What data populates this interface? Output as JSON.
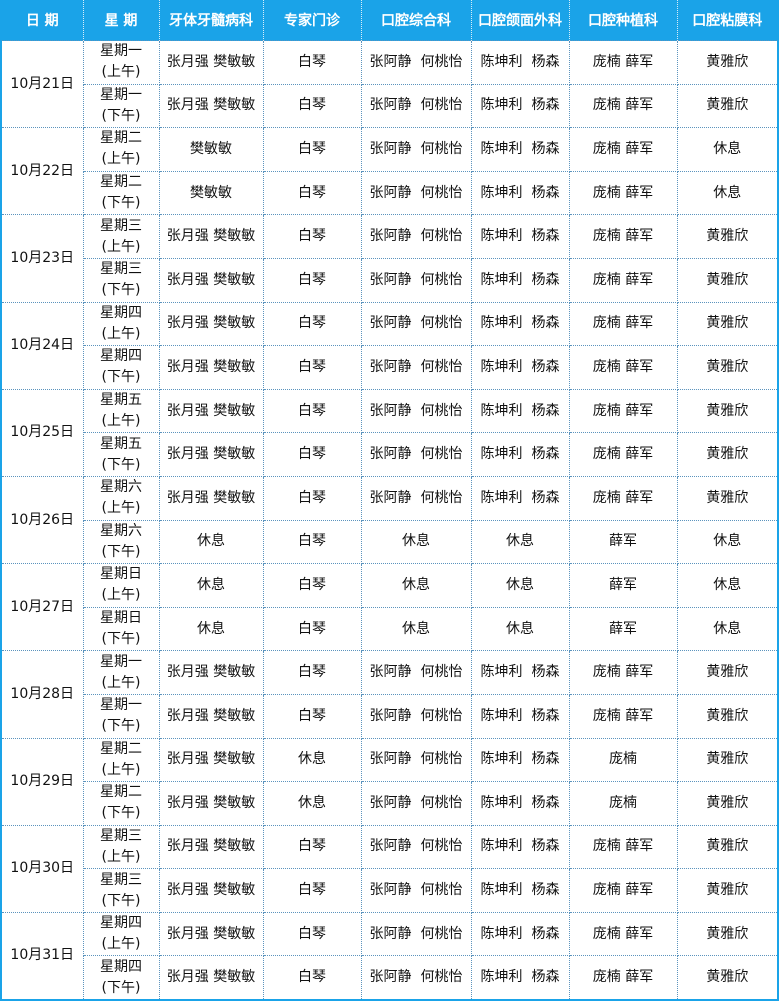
{
  "headers": [
    "日 期",
    "星 期",
    "牙体牙髓病科",
    "专家门诊",
    "口腔综合科",
    "口腔颌面外科",
    "口腔种植科",
    "口腔粘膜科"
  ],
  "days": [
    {
      "date": "10月21日",
      "weekday": "星期一",
      "sessions": [
        {
          "label": "(上午)",
          "cells": [
            "张月强 樊敏敏",
            "白琴",
            "张阿静  何桃怡",
            "陈坤利  杨森",
            "庞楠 薛军",
            "黄雅欣"
          ]
        },
        {
          "label": "(下午)",
          "cells": [
            "张月强 樊敏敏",
            "白琴",
            "张阿静  何桃怡",
            "陈坤利  杨森",
            "庞楠 薛军",
            "黄雅欣"
          ]
        }
      ]
    },
    {
      "date": "10月22日",
      "weekday": "星期二",
      "sessions": [
        {
          "label": "(上午)",
          "cells": [
            "樊敏敏",
            "白琴",
            "张阿静  何桃怡",
            "陈坤利  杨森",
            "庞楠 薛军",
            "休息"
          ]
        },
        {
          "label": "(下午)",
          "cells": [
            "樊敏敏",
            "白琴",
            "张阿静  何桃怡",
            "陈坤利  杨森",
            "庞楠 薛军",
            "休息"
          ]
        }
      ]
    },
    {
      "date": "10月23日",
      "weekday": "星期三",
      "sessions": [
        {
          "label": "(上午)",
          "cells": [
            "张月强 樊敏敏",
            "白琴",
            "张阿静  何桃怡",
            "陈坤利  杨森",
            "庞楠 薛军",
            "黄雅欣"
          ]
        },
        {
          "label": "(下午)",
          "cells": [
            "张月强 樊敏敏",
            "白琴",
            "张阿静  何桃怡",
            "陈坤利  杨森",
            "庞楠 薛军",
            "黄雅欣"
          ]
        }
      ]
    },
    {
      "date": "10月24日",
      "weekday": "星期四",
      "sessions": [
        {
          "label": "(上午)",
          "cells": [
            "张月强 樊敏敏",
            "白琴",
            "张阿静  何桃怡",
            "陈坤利  杨森",
            "庞楠 薛军",
            "黄雅欣"
          ]
        },
        {
          "label": "(下午)",
          "cells": [
            "张月强 樊敏敏",
            "白琴",
            "张阿静  何桃怡",
            "陈坤利  杨森",
            "庞楠 薛军",
            "黄雅欣"
          ]
        }
      ]
    },
    {
      "date": "10月25日",
      "weekday": "星期五",
      "sessions": [
        {
          "label": "(上午)",
          "cells": [
            "张月强 樊敏敏",
            "白琴",
            "张阿静  何桃怡",
            "陈坤利  杨森",
            "庞楠 薛军",
            "黄雅欣"
          ]
        },
        {
          "label": "(下午)",
          "cells": [
            "张月强 樊敏敏",
            "白琴",
            "张阿静  何桃怡",
            "陈坤利  杨森",
            "庞楠 薛军",
            "黄雅欣"
          ]
        }
      ]
    },
    {
      "date": "10月26日",
      "weekday": "星期六",
      "sessions": [
        {
          "label": "(上午)",
          "cells": [
            "张月强 樊敏敏",
            "白琴",
            "张阿静  何桃怡",
            "陈坤利  杨森",
            "庞楠 薛军",
            "黄雅欣"
          ]
        },
        {
          "label": "(下午)",
          "cells": [
            "休息",
            "白琴",
            "休息",
            "休息",
            "薛军",
            "休息"
          ]
        }
      ]
    },
    {
      "date": "10月27日",
      "weekday": "星期日",
      "sessions": [
        {
          "label": "(上午)",
          "cells": [
            "休息",
            "白琴",
            "休息",
            "休息",
            "薛军",
            "休息"
          ]
        },
        {
          "label": "(下午)",
          "cells": [
            "休息",
            "白琴",
            "休息",
            "休息",
            "薛军",
            "休息"
          ]
        }
      ]
    },
    {
      "date": "10月28日",
      "weekday": "星期一",
      "sessions": [
        {
          "label": "(上午)",
          "cells": [
            "张月强 樊敏敏",
            "白琴",
            "张阿静  何桃怡",
            "陈坤利  杨森",
            "庞楠 薛军",
            "黄雅欣"
          ]
        },
        {
          "label": "(下午)",
          "cells": [
            "张月强 樊敏敏",
            "白琴",
            "张阿静  何桃怡",
            "陈坤利  杨森",
            "庞楠 薛军",
            "黄雅欣"
          ]
        }
      ]
    },
    {
      "date": "10月29日",
      "weekday": "星期二",
      "sessions": [
        {
          "label": "(上午)",
          "cells": [
            "张月强 樊敏敏",
            "休息",
            "张阿静  何桃怡",
            "陈坤利  杨森",
            "庞楠",
            "黄雅欣"
          ]
        },
        {
          "label": "(下午)",
          "cells": [
            "张月强 樊敏敏",
            "休息",
            "张阿静  何桃怡",
            "陈坤利  杨森",
            "庞楠",
            "黄雅欣"
          ]
        }
      ]
    },
    {
      "date": "10月30日",
      "weekday": "星期三",
      "sessions": [
        {
          "label": "(上午)",
          "cells": [
            "张月强 樊敏敏",
            "白琴",
            "张阿静  何桃怡",
            "陈坤利  杨森",
            "庞楠 薛军",
            "黄雅欣"
          ]
        },
        {
          "label": "(下午)",
          "cells": [
            "张月强 樊敏敏",
            "白琴",
            "张阿静  何桃怡",
            "陈坤利  杨森",
            "庞楠 薛军",
            "黄雅欣"
          ]
        }
      ]
    },
    {
      "date": "10月31日",
      "weekday": "星期四",
      "sessions": [
        {
          "label": "(上午)",
          "cells": [
            "张月强 樊敏敏",
            "白琴",
            "张阿静  何桃怡",
            "陈坤利  杨森",
            "庞楠 薛军",
            "黄雅欣"
          ]
        },
        {
          "label": "(下午)",
          "cells": [
            "张月强 樊敏敏",
            "白琴",
            "张阿静  何桃怡",
            "陈坤利  杨森",
            "庞楠 薛军",
            "黄雅欣"
          ]
        }
      ]
    }
  ]
}
